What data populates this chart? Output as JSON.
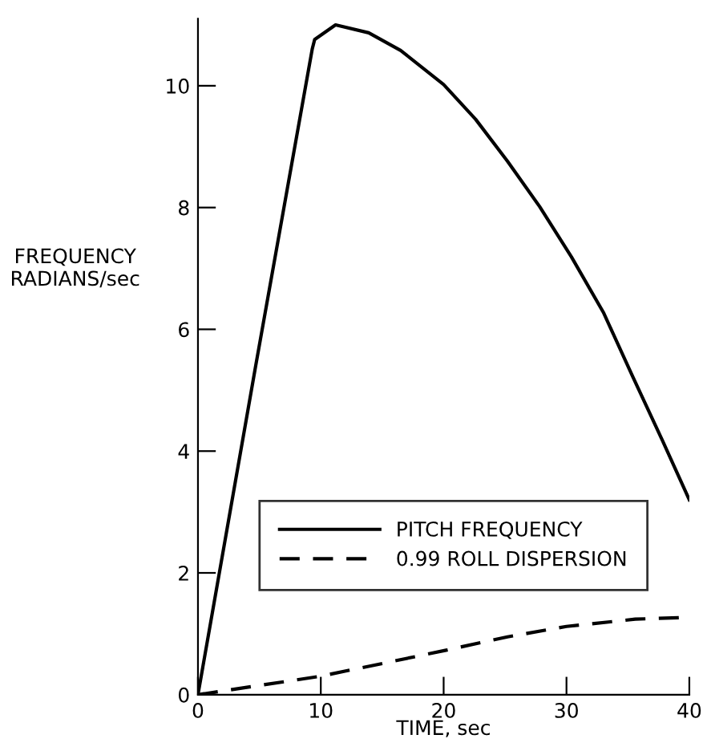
{
  "chart_data": {
    "type": "line",
    "xlabel": "TIME, sec",
    "ylabel": "FREQUENCY\nRADIANS/sec",
    "xlim": [
      0,
      40
    ],
    "ylim": [
      0,
      11.1
    ],
    "xticks": [
      0,
      10,
      20,
      30,
      40
    ],
    "yticks": [
      0,
      2,
      4,
      6,
      8,
      10
    ],
    "grid": false,
    "legend": "bottom",
    "marker": "none",
    "series": [
      {
        "name": "PITCH FREQUENCY",
        "color": "#000000",
        "line_style": "solid",
        "x": [
          0,
          4.7,
          9.3,
          9.5,
          11.2,
          13.9,
          16.5,
          20.0,
          22.6,
          25.2,
          27.8,
          30.4,
          33.0,
          35.4,
          37.8,
          40
        ],
        "values": [
          0,
          5.4,
          10.6,
          10.76,
          11.0,
          10.87,
          10.58,
          10.02,
          9.45,
          8.76,
          8.02,
          7.19,
          6.28,
          5.22,
          4.18,
          3.2
        ]
      },
      {
        "name": "0.99 ROLL DISPERSION",
        "color": "#000000",
        "line_style": "dashed",
        "x": [
          0,
          9.9,
          15.2,
          20.2,
          25.2,
          30,
          35.6,
          40
        ],
        "values": [
          0,
          0.3,
          0.52,
          0.73,
          0.95,
          1.12,
          1.24,
          1.27
        ]
      }
    ]
  }
}
